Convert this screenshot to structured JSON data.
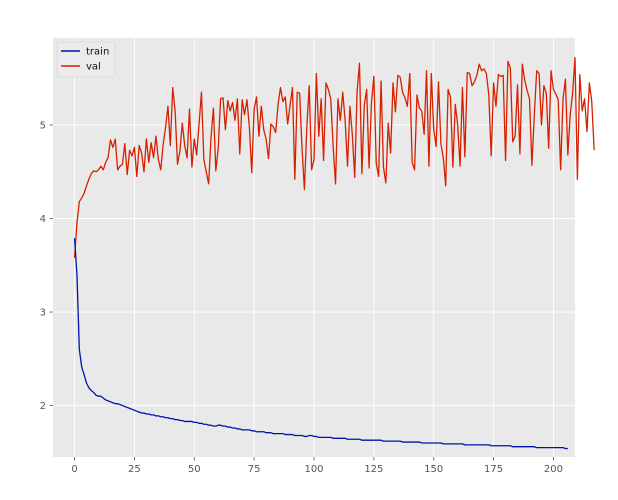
{
  "chart_data": {
    "type": "line",
    "title": "",
    "xlabel": "",
    "ylabel": "",
    "xlim": [
      -9,
      209
    ],
    "ylim": [
      1.45,
      5.93
    ],
    "xticks": [
      0,
      25,
      50,
      75,
      100,
      125,
      150,
      175,
      200
    ],
    "yticks": [
      2,
      3,
      4,
      5
    ],
    "grid": true,
    "legend_position": "top-left",
    "background": "#e9e9e9",
    "series": [
      {
        "name": "train",
        "color": "#0015a8",
        "values": [
          3.79,
          3.4,
          2.6,
          2.41,
          2.33,
          2.24,
          2.19,
          2.16,
          2.14,
          2.11,
          2.1,
          2.1,
          2.08,
          2.06,
          2.05,
          2.04,
          2.03,
          2.02,
          2.02,
          2.01,
          2.0,
          1.99,
          1.98,
          1.97,
          1.96,
          1.95,
          1.94,
          1.93,
          1.92,
          1.92,
          1.91,
          1.91,
          1.9,
          1.9,
          1.89,
          1.89,
          1.88,
          1.88,
          1.87,
          1.87,
          1.86,
          1.86,
          1.85,
          1.85,
          1.84,
          1.84,
          1.83,
          1.83,
          1.83,
          1.83,
          1.82,
          1.82,
          1.81,
          1.81,
          1.8,
          1.8,
          1.79,
          1.79,
          1.78,
          1.78,
          1.79,
          1.79,
          1.78,
          1.78,
          1.77,
          1.77,
          1.76,
          1.76,
          1.75,
          1.75,
          1.74,
          1.74,
          1.74,
          1.74,
          1.73,
          1.73,
          1.72,
          1.72,
          1.72,
          1.72,
          1.71,
          1.71,
          1.71,
          1.7,
          1.7,
          1.7,
          1.7,
          1.7,
          1.69,
          1.69,
          1.69,
          1.69,
          1.68,
          1.68,
          1.68,
          1.68,
          1.67,
          1.67,
          1.68,
          1.68,
          1.67,
          1.67,
          1.66,
          1.66,
          1.66,
          1.66,
          1.66,
          1.66,
          1.65,
          1.65,
          1.65,
          1.65,
          1.65,
          1.65,
          1.64,
          1.64,
          1.64,
          1.64,
          1.64,
          1.64,
          1.63,
          1.63,
          1.63,
          1.63,
          1.63,
          1.63,
          1.63,
          1.63,
          1.63,
          1.62,
          1.62,
          1.62,
          1.62,
          1.62,
          1.62,
          1.62,
          1.62,
          1.61,
          1.61,
          1.61,
          1.61,
          1.61,
          1.61,
          1.61,
          1.61,
          1.6,
          1.6,
          1.6,
          1.6,
          1.6,
          1.6,
          1.6,
          1.6,
          1.6,
          1.59,
          1.59,
          1.59,
          1.59,
          1.59,
          1.59,
          1.59,
          1.59,
          1.59,
          1.58,
          1.58,
          1.58,
          1.58,
          1.58,
          1.58,
          1.58,
          1.58,
          1.58,
          1.58,
          1.58,
          1.57,
          1.57,
          1.57,
          1.57,
          1.57,
          1.57,
          1.57,
          1.57,
          1.57,
          1.56,
          1.56,
          1.56,
          1.56,
          1.56,
          1.56,
          1.56,
          1.56,
          1.56,
          1.56,
          1.55,
          1.55,
          1.55,
          1.55,
          1.55,
          1.55,
          1.55,
          1.55,
          1.55,
          1.55,
          1.55,
          1.55,
          1.54,
          1.54
        ]
      },
      {
        "name": "val",
        "color": "#d62000",
        "values": [
          3.58,
          3.95,
          4.18,
          4.22,
          4.27,
          4.35,
          4.42,
          4.48,
          4.51,
          4.5,
          4.52,
          4.56,
          4.52,
          4.6,
          4.65,
          4.84,
          4.76,
          4.85,
          4.52,
          4.56,
          4.58,
          4.8,
          4.47,
          4.73,
          4.67,
          4.76,
          4.45,
          4.78,
          4.7,
          4.5,
          4.85,
          4.6,
          4.81,
          4.65,
          4.88,
          4.63,
          4.52,
          4.79,
          4.97,
          5.2,
          4.78,
          5.4,
          5.15,
          4.58,
          4.72,
          5.02,
          4.78,
          4.65,
          5.17,
          4.55,
          4.85,
          4.68,
          5.01,
          5.35,
          4.63,
          4.5,
          4.37,
          4.87,
          5.18,
          4.51,
          4.75,
          5.28,
          5.29,
          4.95,
          5.26,
          5.15,
          5.24,
          5.05,
          5.28,
          4.69,
          5.27,
          5.11,
          5.27,
          4.98,
          4.49,
          5.17,
          5.3,
          4.88,
          5.2,
          4.95,
          4.85,
          4.64,
          5.01,
          4.98,
          4.92,
          5.22,
          5.4,
          5.25,
          5.3,
          5.01,
          5.21,
          5.4,
          4.42,
          5.35,
          5.34,
          4.75,
          4.31,
          4.98,
          5.42,
          4.52,
          4.63,
          5.55,
          4.88,
          5.28,
          4.62,
          5.45,
          5.38,
          5.28,
          4.77,
          4.37,
          5.28,
          5.05,
          5.35,
          5.05,
          4.56,
          5.2,
          4.9,
          4.44,
          5.36,
          5.66,
          4.48,
          5.21,
          5.38,
          4.54,
          5.24,
          5.52,
          4.59,
          4.45,
          5.47,
          4.55,
          4.38,
          5.02,
          4.7,
          5.45,
          5.14,
          5.53,
          5.51,
          5.35,
          5.29,
          5.2,
          5.55,
          4.6,
          4.52,
          5.32,
          5.18,
          5.15,
          4.9,
          5.58,
          4.56,
          5.55,
          4.95,
          4.77,
          5.46,
          4.8,
          4.65,
          4.35,
          5.38,
          5.3,
          4.55,
          5.22,
          5.0,
          4.56,
          5.4,
          4.66,
          5.56,
          5.55,
          5.42,
          5.46,
          5.53,
          5.65,
          5.58,
          5.6,
          5.55,
          5.32,
          4.67,
          5.45,
          5.2,
          5.54,
          5.52,
          5.53,
          4.62,
          5.68,
          5.61,
          4.82,
          4.88,
          5.43,
          4.69,
          5.65,
          5.48,
          5.37,
          5.28,
          4.57,
          5.1,
          5.58,
          5.55,
          5.0,
          5.42,
          5.34,
          4.75,
          5.58,
          5.38,
          5.33,
          5.27,
          4.52,
          5.28,
          5.49,
          4.68,
          5.11,
          5.34,
          5.72,
          4.42,
          5.54,
          5.15,
          5.28,
          4.93,
          5.45,
          5.25,
          4.73
        ]
      }
    ]
  }
}
